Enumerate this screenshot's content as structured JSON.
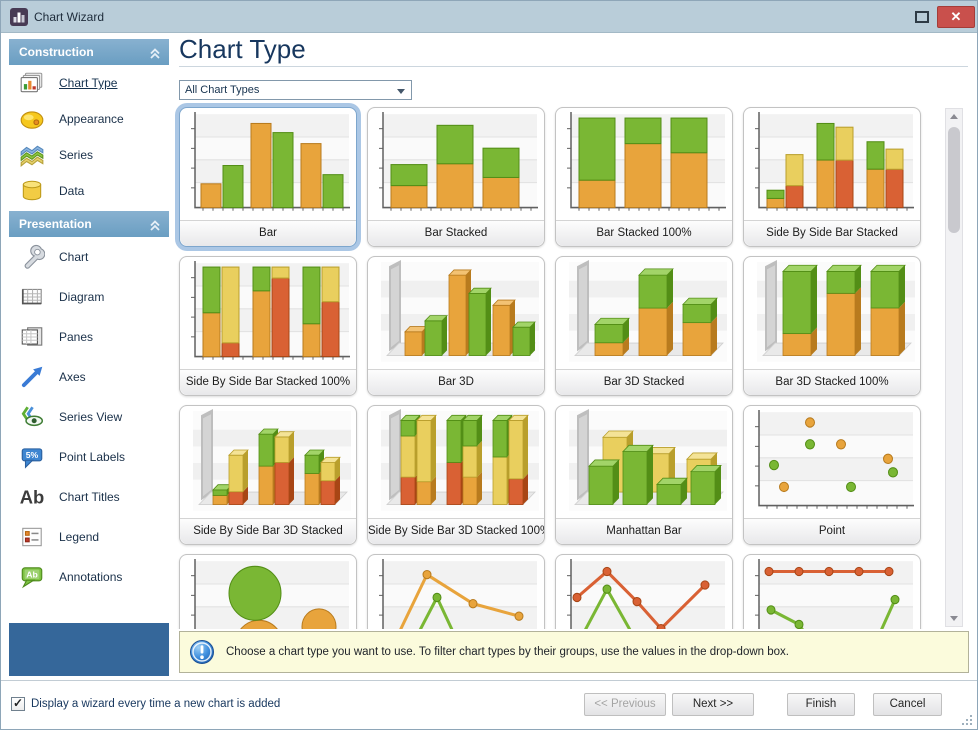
{
  "window": {
    "title": "Chart Wizard"
  },
  "sidebar": {
    "sections": [
      {
        "label": "Construction",
        "items": [
          {
            "label": "Chart Type",
            "icon": "chart-type-icon",
            "selected": true
          },
          {
            "label": "Appearance",
            "icon": "palette-icon"
          },
          {
            "label": "Series",
            "icon": "series-icon"
          },
          {
            "label": "Data",
            "icon": "database-icon"
          }
        ]
      },
      {
        "label": "Presentation",
        "items": [
          {
            "label": "Chart",
            "icon": "wrench-icon"
          },
          {
            "label": "Diagram",
            "icon": "diagram-grid-icon"
          },
          {
            "label": "Panes",
            "icon": "panes-icon"
          },
          {
            "label": "Axes",
            "icon": "axes-arrow-icon"
          },
          {
            "label": "Series View",
            "icon": "series-view-eye-icon"
          },
          {
            "label": "Point Labels",
            "icon": "point-labels-bubble-icon",
            "icon_text": "5%"
          },
          {
            "label": "Chart Titles",
            "icon": "chart-titles-ab-icon",
            "icon_text": "Ab"
          },
          {
            "label": "Legend",
            "icon": "legend-icon"
          },
          {
            "label": "Annotations",
            "icon": "annotations-bubble-icon",
            "icon_text": "Ab"
          }
        ]
      }
    ]
  },
  "main": {
    "heading": "Chart Type",
    "filter_value": "All Chart Types",
    "tiles": [
      {
        "label": "Bar",
        "viz": "bar",
        "selected": true
      },
      {
        "label": "Bar Stacked",
        "viz": "bar-stacked"
      },
      {
        "label": "Bar Stacked 100%",
        "viz": "bar-stacked-100"
      },
      {
        "label": "Side By Side Bar Stacked",
        "viz": "sbs-bar-stacked"
      },
      {
        "label": "Side By Side Bar Stacked 100%",
        "viz": "sbs-bar-stacked-100"
      },
      {
        "label": "Bar 3D",
        "viz": "bar-3d"
      },
      {
        "label": "Bar 3D Stacked",
        "viz": "bar-3d-stacked"
      },
      {
        "label": "Bar 3D Stacked 100%",
        "viz": "bar-3d-stacked-100"
      },
      {
        "label": "Side By Side Bar 3D Stacked",
        "viz": "sbs-bar-3d-stacked"
      },
      {
        "label": "Side By Side Bar 3D Stacked 100%",
        "viz": "sbs-bar-3d-stacked-100"
      },
      {
        "label": "Manhattan Bar",
        "viz": "manhattan-bar"
      },
      {
        "label": "Point",
        "viz": "point"
      },
      {
        "label": "",
        "viz": "bubble"
      },
      {
        "label": "",
        "viz": "line"
      },
      {
        "label": "",
        "viz": "stacked-line"
      },
      {
        "label": "",
        "viz": "stacked-line-100"
      }
    ],
    "info_text": "Choose a chart type you want to use. To filter chart types by their groups, use the values in the drop-down box."
  },
  "footer": {
    "checkbox_label": "Display a wizard every time a new chart is added",
    "checkbox_checked": true,
    "buttons": [
      {
        "name": "previous",
        "label": "<< Previous",
        "disabled": true
      },
      {
        "name": "next",
        "label": "Next >>",
        "disabled": false
      },
      {
        "name": "finish",
        "label": "Finish",
        "disabled": false
      },
      {
        "name": "cancel",
        "label": "Cancel",
        "disabled": false
      }
    ]
  },
  "colors": {
    "titlebar_bg": "#b9cdd9",
    "close_red": "#c9504c",
    "section_header_blue": "#79a8c9",
    "sidebar_footer_blue": "#35679a",
    "selection_ring_blue": "#abc7e5",
    "info_bg": "#fbfbdc",
    "bar_orange": "#e8a43c",
    "bar_green": "#7ab734",
    "bar_yellow": "#e9cf5e",
    "bar_red": "#d96134"
  }
}
